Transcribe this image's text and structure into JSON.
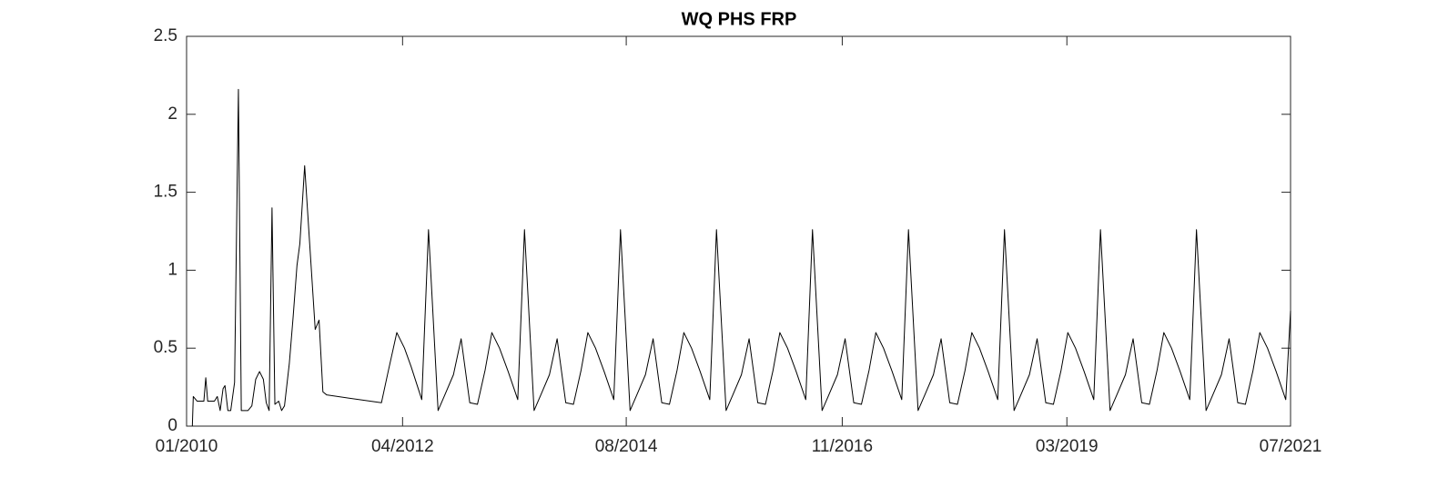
{
  "chart_data": {
    "type": "line",
    "title": "WQ PHS FRP",
    "color": "#000000",
    "x": [
      2010.06,
      2010.07,
      2010.11,
      2010.18,
      2010.2,
      2010.22,
      2010.29,
      2010.32,
      2010.35,
      2010.38,
      2010.4,
      2010.43,
      2010.46,
      2010.5,
      2010.54,
      2010.57,
      2010.64,
      2010.68,
      2010.72,
      2010.76,
      2010.8,
      2010.83,
      2010.86,
      2010.89,
      2010.92,
      2010.96,
      2010.99,
      2011.02,
      2011.07,
      2011.11,
      2011.15,
      2011.18,
      2011.23,
      2011.34,
      2011.38,
      2011.42,
      2011.46,
      2012.03,
      2012.1,
      2012.19,
      2012.27,
      2012.34,
      2012.45,
      2012.52,
      2012.62,
      2012.69,
      2012.78,
      2012.86,
      2012.95,
      2013.03,
      2013.11,
      2013.18,
      2013.26,
      2013.35,
      2013.45,
      2013.52,
      2013.62,
      2013.69,
      2013.78,
      2013.86,
      2013.95,
      2014.03,
      2014.11,
      2014.18,
      2014.26,
      2014.35,
      2014.45,
      2014.52,
      2014.62,
      2014.69,
      2014.78,
      2014.86,
      2014.95,
      2015.03,
      2015.11,
      2015.18,
      2015.26,
      2015.35,
      2015.45,
      2015.52,
      2015.62,
      2015.69,
      2015.78,
      2015.86,
      2015.95,
      2016.03,
      2016.11,
      2016.18,
      2016.26,
      2016.35,
      2016.45,
      2016.52,
      2016.62,
      2016.69,
      2016.78,
      2016.86,
      2016.95,
      2017.03,
      2017.11,
      2017.18,
      2017.26,
      2017.35,
      2017.45,
      2017.52,
      2017.62,
      2017.69,
      2017.78,
      2017.86,
      2017.95,
      2018.03,
      2018.11,
      2018.18,
      2018.26,
      2018.35,
      2018.45,
      2018.52,
      2018.62,
      2018.69,
      2018.78,
      2018.86,
      2018.95,
      2019.03,
      2019.11,
      2019.18,
      2019.26,
      2019.35,
      2019.45,
      2019.52,
      2019.62,
      2019.69,
      2019.78,
      2019.86,
      2019.95,
      2020.03,
      2020.11,
      2020.18,
      2020.26,
      2020.35,
      2020.45,
      2020.52,
      2020.62,
      2020.69,
      2020.78,
      2020.86,
      2020.95,
      2021.03,
      2021.11,
      2021.18,
      2021.26,
      2021.35,
      2021.45,
      2021.5
    ],
    "values": [
      0,
      0.19,
      0.16,
      0.16,
      0.31,
      0.16,
      0.16,
      0.19,
      0.1,
      0.24,
      0.26,
      0.1,
      0.1,
      0.28,
      2.16,
      0.1,
      0.1,
      0.13,
      0.3,
      0.35,
      0.3,
      0.15,
      0.1,
      1.4,
      0.14,
      0.16,
      0.1,
      0.13,
      0.4,
      0.7,
      1.03,
      1.17,
      1.67,
      0.62,
      0.68,
      0.22,
      0.2,
      0.15,
      0.35,
      0.6,
      0.5,
      0.38,
      0.17,
      1.26,
      0.1,
      0.2,
      0.33,
      0.56,
      0.15,
      0.14,
      0.36,
      0.6,
      0.5,
      0.35,
      0.17,
      1.26,
      0.1,
      0.2,
      0.33,
      0.56,
      0.15,
      0.14,
      0.36,
      0.6,
      0.5,
      0.35,
      0.17,
      1.26,
      0.1,
      0.2,
      0.33,
      0.56,
      0.15,
      0.14,
      0.36,
      0.6,
      0.5,
      0.35,
      0.17,
      1.26,
      0.1,
      0.2,
      0.33,
      0.56,
      0.15,
      0.14,
      0.36,
      0.6,
      0.5,
      0.35,
      0.17,
      1.26,
      0.1,
      0.2,
      0.33,
      0.56,
      0.15,
      0.14,
      0.36,
      0.6,
      0.5,
      0.35,
      0.17,
      1.26,
      0.1,
      0.2,
      0.33,
      0.56,
      0.15,
      0.14,
      0.36,
      0.6,
      0.5,
      0.35,
      0.17,
      1.26,
      0.1,
      0.2,
      0.33,
      0.56,
      0.15,
      0.14,
      0.36,
      0.6,
      0.5,
      0.35,
      0.17,
      1.26,
      0.1,
      0.2,
      0.33,
      0.56,
      0.15,
      0.14,
      0.36,
      0.6,
      0.5,
      0.35,
      0.17,
      1.26,
      0.1,
      0.2,
      0.33,
      0.56,
      0.15,
      0.14,
      0.36,
      0.6,
      0.5,
      0.35,
      0.17,
      0.74
    ],
    "xlim": [
      2010,
      2021.5
    ],
    "xticks": [
      {
        "value": 2010,
        "label": "01/2010"
      },
      {
        "value": 2012.25,
        "label": "04/2012"
      },
      {
        "value": 2014.58,
        "label": "08/2014"
      },
      {
        "value": 2016.83,
        "label": "11/2016"
      },
      {
        "value": 2019.17,
        "label": "03/2019"
      },
      {
        "value": 2021.5,
        "label": "07/2021"
      }
    ],
    "ylim": [
      0,
      2.5
    ],
    "yticks": [
      0,
      0.5,
      1,
      1.5,
      2,
      2.5
    ]
  }
}
